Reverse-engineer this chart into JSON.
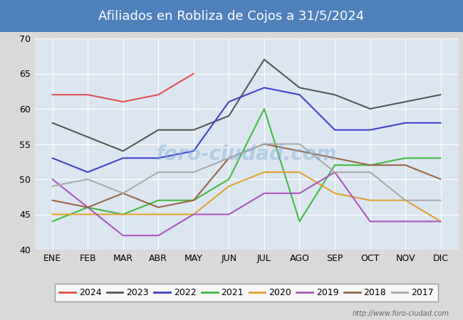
{
  "title": "Afiliados en Robliza de Cojos a 31/5/2024",
  "title_bg_color": "#4f81bd",
  "title_text_color": "white",
  "ylim": [
    40,
    70
  ],
  "yticks": [
    40,
    45,
    50,
    55,
    60,
    65,
    70
  ],
  "months": [
    "ENE",
    "FEB",
    "MAR",
    "ABR",
    "MAY",
    "JUN",
    "JUL",
    "AGO",
    "SEP",
    "OCT",
    "NOV",
    "DIC"
  ],
  "watermark": "http://www.foro-ciudad.com",
  "series": {
    "2024": {
      "color": "#e05050",
      "data": [
        62,
        62,
        61,
        62,
        65,
        null,
        null,
        null,
        null,
        null,
        null,
        null
      ]
    },
    "2023": {
      "color": "#555555",
      "data": [
        58,
        56,
        54,
        57,
        57,
        59,
        67,
        63,
        62,
        60,
        61,
        62
      ]
    },
    "2022": {
      "color": "#4040cc",
      "data": [
        53,
        51,
        53,
        53,
        54,
        61,
        63,
        62,
        57,
        57,
        58,
        58
      ]
    },
    "2021": {
      "color": "#40bb40",
      "data": [
        44,
        46,
        45,
        47,
        47,
        50,
        60,
        44,
        52,
        52,
        53,
        53
      ]
    },
    "2020": {
      "color": "#e0a030",
      "data": [
        45,
        45,
        45,
        45,
        45,
        49,
        51,
        51,
        48,
        47,
        47,
        44
      ]
    },
    "2019": {
      "color": "#aa55bb",
      "data": [
        50,
        46,
        42,
        42,
        45,
        45,
        48,
        48,
        51,
        44,
        44,
        44
      ]
    },
    "2018": {
      "color": "#996644",
      "data": [
        47,
        46,
        48,
        46,
        47,
        53,
        55,
        54,
        53,
        52,
        52,
        50
      ]
    },
    "2017": {
      "color": "#aaaaaa",
      "data": [
        49,
        50,
        48,
        51,
        51,
        53,
        55,
        55,
        51,
        51,
        47,
        47
      ]
    }
  },
  "legend_order": [
    "2024",
    "2023",
    "2022",
    "2021",
    "2020",
    "2019",
    "2018",
    "2017"
  ],
  "bg_color": "#d9d9d9",
  "plot_bg_color": "#dce6f1",
  "grid_color": "white",
  "fontsize_title": 13,
  "fontsize_ticks": 9,
  "fontsize_legend": 9
}
